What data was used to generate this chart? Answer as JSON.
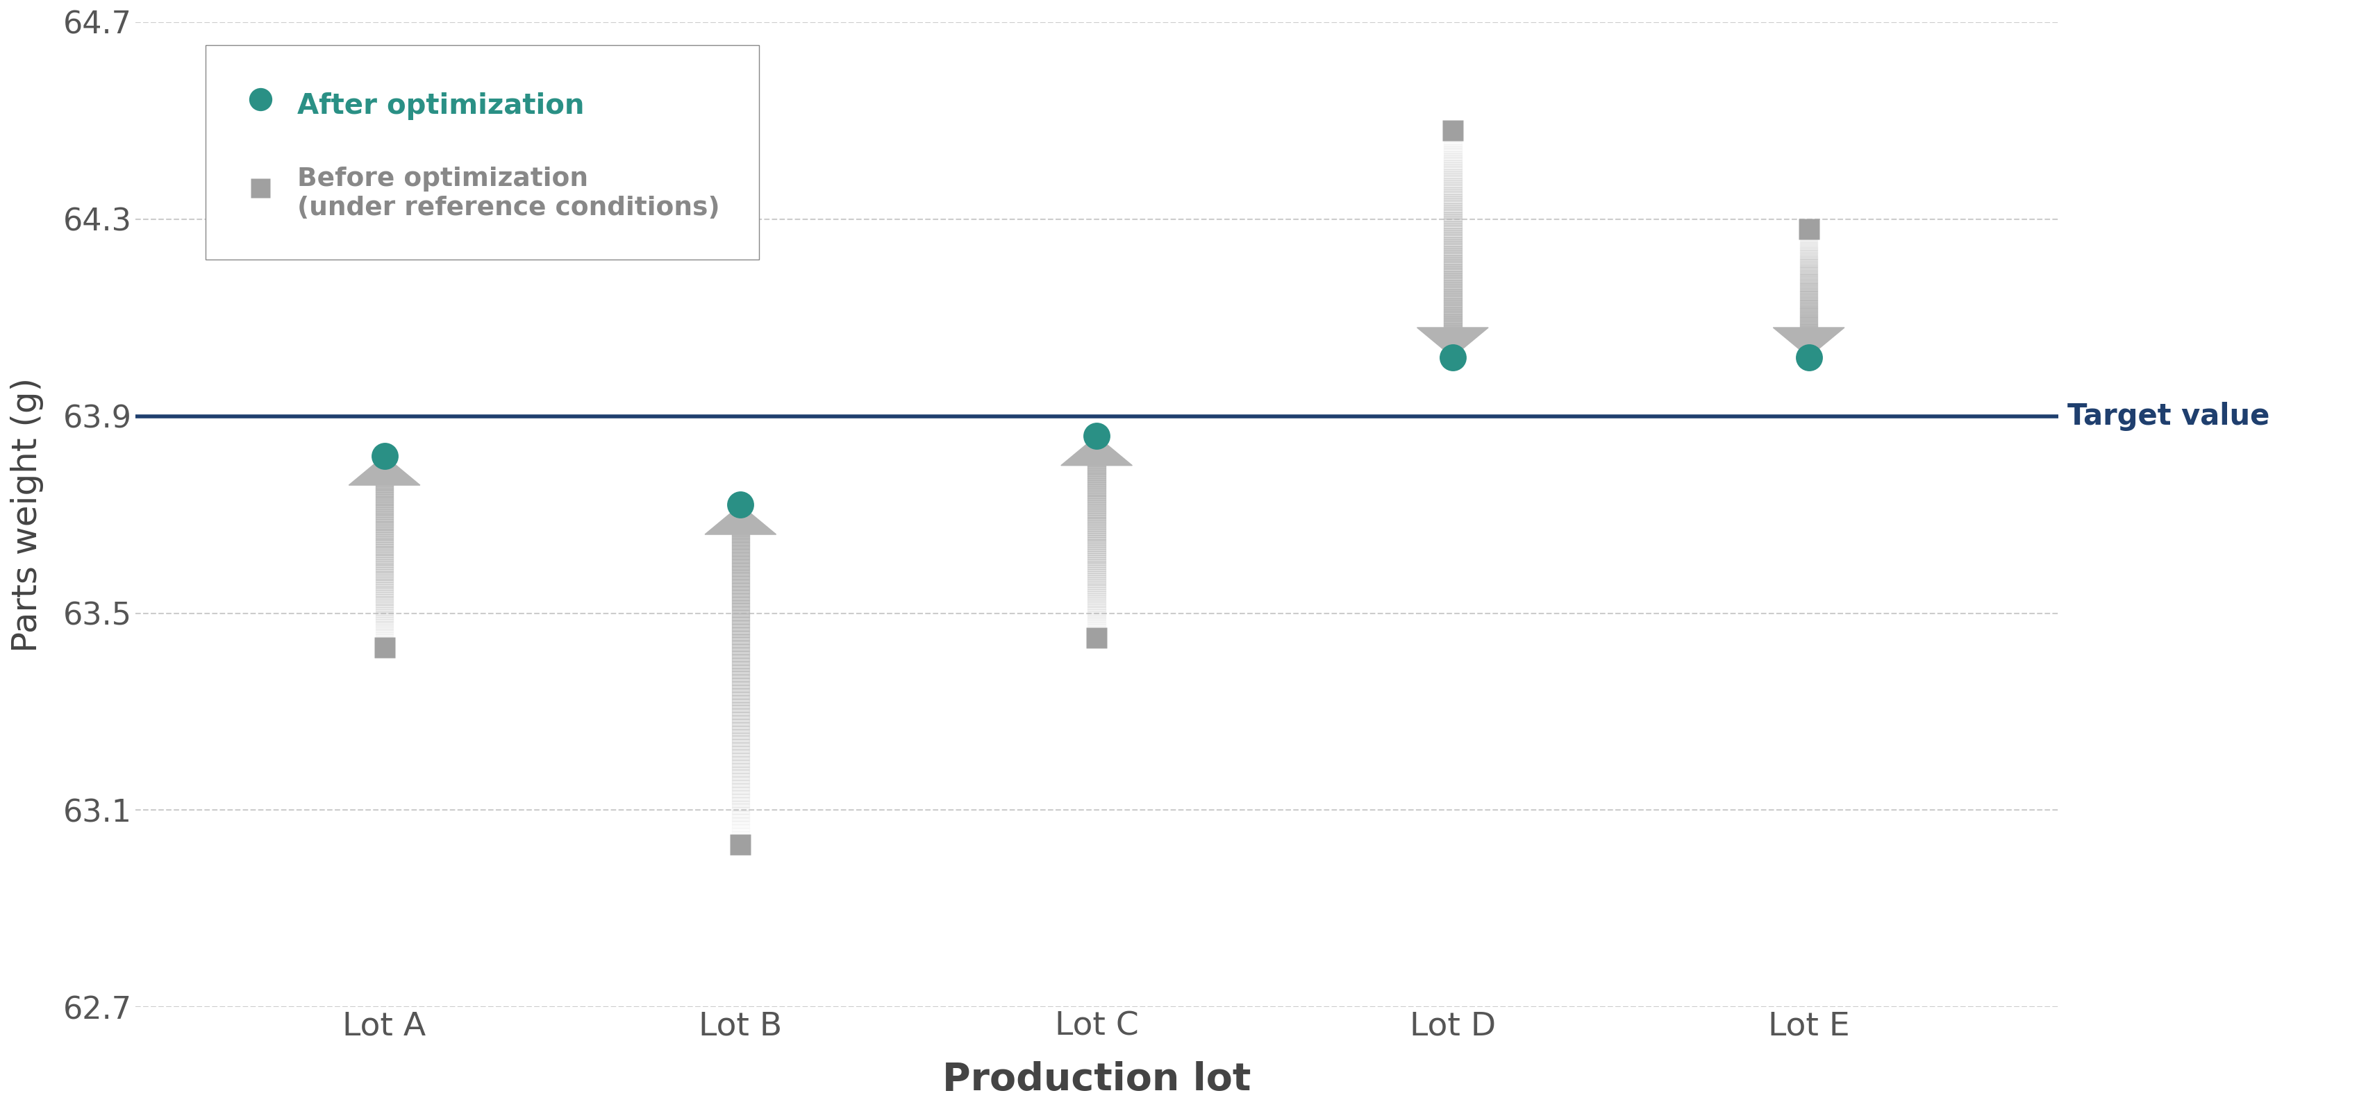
{
  "lots": [
    "Lot A",
    "Lot B",
    "Lot C",
    "Lot D",
    "Lot E"
  ],
  "after_opt": [
    63.82,
    63.72,
    63.86,
    64.02,
    64.02
  ],
  "before_opt": [
    63.43,
    63.03,
    63.45,
    64.48,
    64.28
  ],
  "target_value": 63.9,
  "ylim": [
    62.7,
    64.7
  ],
  "yticks": [
    62.7,
    63.1,
    63.5,
    63.9,
    64.3,
    64.7
  ],
  "ylabel": "Parts weight (g)",
  "xlabel": "Production lot",
  "target_label": "Target value",
  "legend_after": "After optimization",
  "legend_before": "Before optimization\n(under reference conditions)",
  "teal_color": "#2a9085",
  "gray_color": "#a0a0a0",
  "target_line_color": "#1f3f6e",
  "background_color": "#ffffff"
}
